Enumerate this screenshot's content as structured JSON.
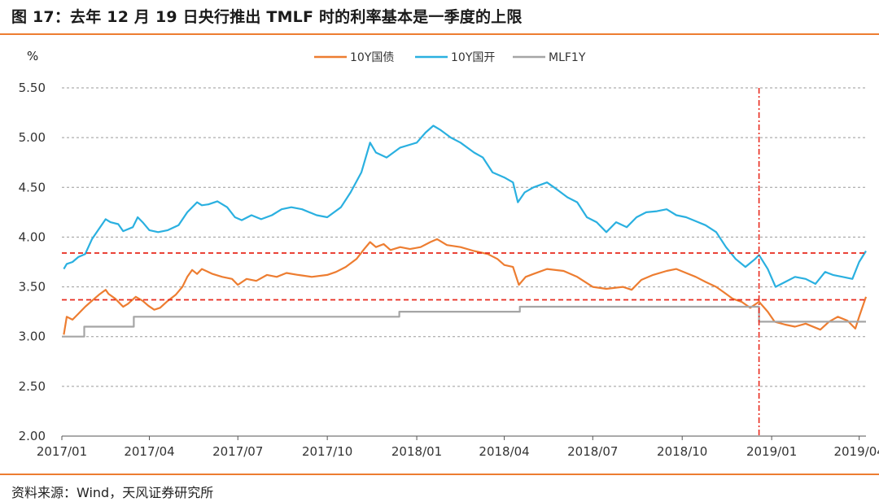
{
  "figure": {
    "title": "图 17：去年 12 月 19 日央行推出 TMLF 时的利率基本是一季度的上限",
    "source": "资料来源：Wind，天风证券研究所"
  },
  "chart_data": {
    "type": "line",
    "ylabel": "%",
    "ylim": [
      2.0,
      5.5
    ],
    "yticks": [
      "5.50",
      "5.00",
      "4.50",
      "4.00",
      "3.50",
      "3.00",
      "2.50",
      "2.00"
    ],
    "xticks": [
      "2017/01",
      "2017/04",
      "2017/07",
      "2017/10",
      "2018/01",
      "2018/04",
      "2018/07",
      "2018/10",
      "2019/01",
      "2019/04"
    ],
    "xlim": [
      "2017-01-01",
      "2019-04-08"
    ],
    "grid": "horizontal-dashed",
    "legend": "top-center",
    "series": [
      {
        "name": "10Y国债",
        "color": "#ed7d31",
        "points": [
          [
            "2017-01-03",
            3.02
          ],
          [
            "2017-01-06",
            3.2
          ],
          [
            "2017-01-12",
            3.17
          ],
          [
            "2017-01-18",
            3.23
          ],
          [
            "2017-01-25",
            3.3
          ],
          [
            "2017-02-01",
            3.36
          ],
          [
            "2017-02-08",
            3.42
          ],
          [
            "2017-02-15",
            3.47
          ],
          [
            "2017-02-18",
            3.43
          ],
          [
            "2017-02-25",
            3.38
          ],
          [
            "2017-03-05",
            3.3
          ],
          [
            "2017-03-10",
            3.33
          ],
          [
            "2017-03-18",
            3.4
          ],
          [
            "2017-03-25",
            3.36
          ],
          [
            "2017-03-31",
            3.31
          ],
          [
            "2017-04-06",
            3.27
          ],
          [
            "2017-04-12",
            3.29
          ],
          [
            "2017-04-20",
            3.36
          ],
          [
            "2017-04-28",
            3.42
          ],
          [
            "2017-05-05",
            3.5
          ],
          [
            "2017-05-10",
            3.6
          ],
          [
            "2017-05-15",
            3.67
          ],
          [
            "2017-05-20",
            3.63
          ],
          [
            "2017-05-25",
            3.68
          ],
          [
            "2017-06-05",
            3.63
          ],
          [
            "2017-06-15",
            3.6
          ],
          [
            "2017-06-25",
            3.58
          ],
          [
            "2017-07-01",
            3.52
          ],
          [
            "2017-07-10",
            3.58
          ],
          [
            "2017-07-20",
            3.56
          ],
          [
            "2017-07-31",
            3.62
          ],
          [
            "2017-08-10",
            3.6
          ],
          [
            "2017-08-20",
            3.64
          ],
          [
            "2017-09-01",
            3.62
          ],
          [
            "2017-09-15",
            3.6
          ],
          [
            "2017-10-01",
            3.62
          ],
          [
            "2017-10-10",
            3.65
          ],
          [
            "2017-10-20",
            3.7
          ],
          [
            "2017-10-31",
            3.78
          ],
          [
            "2017-11-08",
            3.88
          ],
          [
            "2017-11-14",
            3.95
          ],
          [
            "2017-11-20",
            3.9
          ],
          [
            "2017-11-28",
            3.93
          ],
          [
            "2017-12-05",
            3.87
          ],
          [
            "2017-12-15",
            3.9
          ],
          [
            "2017-12-25",
            3.88
          ],
          [
            "2018-01-05",
            3.9
          ],
          [
            "2018-01-15",
            3.95
          ],
          [
            "2018-01-22",
            3.98
          ],
          [
            "2018-02-01",
            3.92
          ],
          [
            "2018-02-15",
            3.9
          ],
          [
            "2018-03-01",
            3.86
          ],
          [
            "2018-03-15",
            3.83
          ],
          [
            "2018-03-25",
            3.78
          ],
          [
            "2018-04-01",
            3.72
          ],
          [
            "2018-04-10",
            3.7
          ],
          [
            "2018-04-16",
            3.52
          ],
          [
            "2018-04-23",
            3.6
          ],
          [
            "2018-05-01",
            3.63
          ],
          [
            "2018-05-15",
            3.68
          ],
          [
            "2018-06-01",
            3.66
          ],
          [
            "2018-06-15",
            3.6
          ],
          [
            "2018-07-01",
            3.5
          ],
          [
            "2018-07-15",
            3.48
          ],
          [
            "2018-08-01",
            3.5
          ],
          [
            "2018-08-10",
            3.47
          ],
          [
            "2018-08-20",
            3.57
          ],
          [
            "2018-09-01",
            3.62
          ],
          [
            "2018-09-15",
            3.66
          ],
          [
            "2018-09-25",
            3.68
          ],
          [
            "2018-10-05",
            3.64
          ],
          [
            "2018-10-15",
            3.6
          ],
          [
            "2018-10-25",
            3.55
          ],
          [
            "2018-11-05",
            3.5
          ],
          [
            "2018-11-15",
            3.43
          ],
          [
            "2018-11-22",
            3.38
          ],
          [
            "2018-12-01",
            3.35
          ],
          [
            "2018-12-10",
            3.29
          ],
          [
            "2018-12-19",
            3.35
          ],
          [
            "2018-12-28",
            3.25
          ],
          [
            "2019-01-04",
            3.15
          ],
          [
            "2019-01-15",
            3.12
          ],
          [
            "2019-01-25",
            3.1
          ],
          [
            "2019-02-05",
            3.13
          ],
          [
            "2019-02-20",
            3.07
          ],
          [
            "2019-03-01",
            3.15
          ],
          [
            "2019-03-10",
            3.2
          ],
          [
            "2019-03-20",
            3.16
          ],
          [
            "2019-03-28",
            3.08
          ],
          [
            "2019-04-01",
            3.2
          ],
          [
            "2019-04-08",
            3.4
          ]
        ]
      },
      {
        "name": "10Y国开",
        "color": "#2ab0e0",
        "points": [
          [
            "2017-01-03",
            3.68
          ],
          [
            "2017-01-06",
            3.73
          ],
          [
            "2017-01-12",
            3.75
          ],
          [
            "2017-01-18",
            3.8
          ],
          [
            "2017-01-25",
            3.83
          ],
          [
            "2017-02-01",
            3.98
          ],
          [
            "2017-02-08",
            4.08
          ],
          [
            "2017-02-15",
            4.18
          ],
          [
            "2017-02-20",
            4.15
          ],
          [
            "2017-02-28",
            4.13
          ],
          [
            "2017-03-05",
            4.06
          ],
          [
            "2017-03-15",
            4.1
          ],
          [
            "2017-03-20",
            4.2
          ],
          [
            "2017-03-25",
            4.15
          ],
          [
            "2017-04-01",
            4.07
          ],
          [
            "2017-04-10",
            4.05
          ],
          [
            "2017-04-20",
            4.07
          ],
          [
            "2017-05-01",
            4.12
          ],
          [
            "2017-05-10",
            4.25
          ],
          [
            "2017-05-20",
            4.35
          ],
          [
            "2017-05-25",
            4.32
          ],
          [
            "2017-06-01",
            4.33
          ],
          [
            "2017-06-10",
            4.36
          ],
          [
            "2017-06-20",
            4.3
          ],
          [
            "2017-06-28",
            4.2
          ],
          [
            "2017-07-05",
            4.17
          ],
          [
            "2017-07-15",
            4.22
          ],
          [
            "2017-07-25",
            4.18
          ],
          [
            "2017-08-05",
            4.22
          ],
          [
            "2017-08-15",
            4.28
          ],
          [
            "2017-08-25",
            4.3
          ],
          [
            "2017-09-05",
            4.28
          ],
          [
            "2017-09-20",
            4.22
          ],
          [
            "2017-10-01",
            4.2
          ],
          [
            "2017-10-15",
            4.3
          ],
          [
            "2017-10-25",
            4.45
          ],
          [
            "2017-11-05",
            4.65
          ],
          [
            "2017-11-14",
            4.95
          ],
          [
            "2017-11-20",
            4.85
          ],
          [
            "2017-12-01",
            4.8
          ],
          [
            "2017-12-15",
            4.9
          ],
          [
            "2018-01-01",
            4.95
          ],
          [
            "2018-01-10",
            5.05
          ],
          [
            "2018-01-18",
            5.12
          ],
          [
            "2018-01-25",
            5.08
          ],
          [
            "2018-02-05",
            5.0
          ],
          [
            "2018-02-15",
            4.95
          ],
          [
            "2018-03-01",
            4.85
          ],
          [
            "2018-03-10",
            4.8
          ],
          [
            "2018-03-20",
            4.65
          ],
          [
            "2018-04-01",
            4.6
          ],
          [
            "2018-04-10",
            4.55
          ],
          [
            "2018-04-15",
            4.35
          ],
          [
            "2018-04-22",
            4.45
          ],
          [
            "2018-05-01",
            4.5
          ],
          [
            "2018-05-15",
            4.55
          ],
          [
            "2018-05-25",
            4.48
          ],
          [
            "2018-06-05",
            4.4
          ],
          [
            "2018-06-15",
            4.35
          ],
          [
            "2018-06-25",
            4.2
          ],
          [
            "2018-07-05",
            4.15
          ],
          [
            "2018-07-15",
            4.05
          ],
          [
            "2018-07-25",
            4.15
          ],
          [
            "2018-08-05",
            4.1
          ],
          [
            "2018-08-15",
            4.2
          ],
          [
            "2018-08-25",
            4.25
          ],
          [
            "2018-09-05",
            4.26
          ],
          [
            "2018-09-15",
            4.28
          ],
          [
            "2018-09-25",
            4.22
          ],
          [
            "2018-10-05",
            4.2
          ],
          [
            "2018-10-15",
            4.16
          ],
          [
            "2018-10-25",
            4.12
          ],
          [
            "2018-11-05",
            4.05
          ],
          [
            "2018-11-15",
            3.9
          ],
          [
            "2018-11-25",
            3.78
          ],
          [
            "2018-12-05",
            3.7
          ],
          [
            "2018-12-15",
            3.78
          ],
          [
            "2018-12-19",
            3.82
          ],
          [
            "2018-12-28",
            3.68
          ],
          [
            "2019-01-05",
            3.5
          ],
          [
            "2019-01-15",
            3.55
          ],
          [
            "2019-01-25",
            3.6
          ],
          [
            "2019-02-05",
            3.58
          ],
          [
            "2019-02-15",
            3.53
          ],
          [
            "2019-02-25",
            3.65
          ],
          [
            "2019-03-05",
            3.62
          ],
          [
            "2019-03-15",
            3.6
          ],
          [
            "2019-03-25",
            3.58
          ],
          [
            "2019-04-01",
            3.75
          ],
          [
            "2019-04-08",
            3.86
          ]
        ]
      },
      {
        "name": "MLF1Y",
        "color": "#a5a5a5",
        "points": [
          [
            "2017-01-01",
            3.0
          ],
          [
            "2017-01-24",
            3.0
          ],
          [
            "2017-01-24",
            3.1
          ],
          [
            "2017-03-16",
            3.1
          ],
          [
            "2017-03-16",
            3.2
          ],
          [
            "2017-12-14",
            3.2
          ],
          [
            "2017-12-14",
            3.25
          ],
          [
            "2018-04-17",
            3.25
          ],
          [
            "2018-04-17",
            3.3
          ],
          [
            "2018-12-19",
            3.3
          ],
          [
            "2018-12-19",
            3.15
          ],
          [
            "2019-04-08",
            3.15
          ]
        ]
      }
    ],
    "hlines": [
      {
        "y": 3.84,
        "color": "#e8291c"
      },
      {
        "y": 3.37,
        "color": "#e8291c"
      }
    ],
    "vlines": [
      {
        "x": "2018-12-19",
        "color": "#e8291c"
      }
    ]
  }
}
